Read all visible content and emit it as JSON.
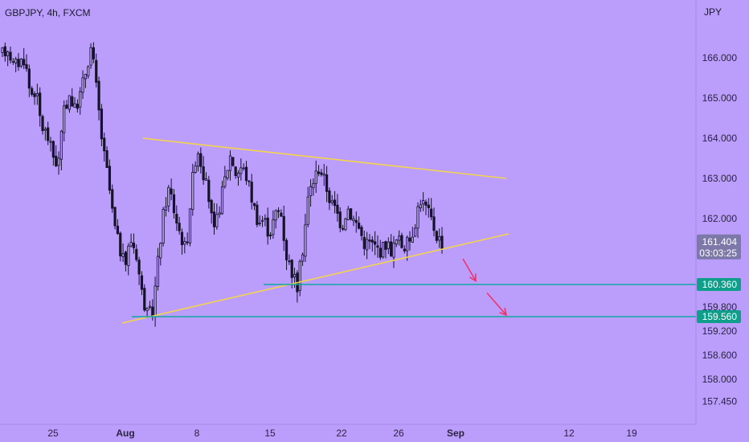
{
  "header": {
    "symbol_title": "GBPJPY, 4h, FXCM",
    "currency_unit": "JPY"
  },
  "colors": {
    "background": "#bb9efc",
    "candle": "#16122a",
    "trendline": "#f3d44a",
    "support_line": "#11a5a0",
    "tag": "#0f9e8a",
    "current_tag": "#7c79a8",
    "arrow": "#f0336a"
  },
  "chart_data": {
    "type": "candlestick",
    "title": "GBPJPY, 4h, FXCM",
    "ylabel": "JPY",
    "ylim": [
      157.2,
      167.3
    ],
    "y_ticks": [
      "166.000",
      "165.000",
      "164.000",
      "163.000",
      "162.000",
      "159.800",
      "159.200",
      "158.600",
      "158.000",
      "157.450"
    ],
    "x_ticks": [
      "25",
      "Aug",
      "8",
      "15",
      "22",
      "26",
      "Sep",
      "12",
      "19"
    ],
    "x_tick_bold": [
      "Aug",
      "Sep"
    ],
    "price_path": [
      166.1,
      166.25,
      165.8,
      165.9,
      166.0,
      165.1,
      165.2,
      164.3,
      164.1,
      163.6,
      163.3,
      164.6,
      165.1,
      164.7,
      165.1,
      165.7,
      166.3,
      165.1,
      163.8,
      163.0,
      161.9,
      161.3,
      160.8,
      161.5,
      161.2,
      160.2,
      159.6,
      159.7,
      161.0,
      162.2,
      162.8,
      162.1,
      161.6,
      161.2,
      162.8,
      163.8,
      163.2,
      162.6,
      161.6,
      162.3,
      163.0,
      163.6,
      163.1,
      163.3,
      163.0,
      162.4,
      161.9,
      162.0,
      161.6,
      162.1,
      162.2,
      161.1,
      160.7,
      160.3,
      161.3,
      162.6,
      163.0,
      163.3,
      162.9,
      162.4,
      162.2,
      161.8,
      162.3,
      162.0,
      161.8,
      161.4,
      161.4,
      161.3,
      161.2,
      161.4,
      161.2,
      161.5,
      161.3,
      161.4,
      161.8,
      162.5,
      162.3,
      162.0,
      161.6,
      161.4
    ],
    "candle_count": 165,
    "last_price": "161.404",
    "countdown": "03:03:25",
    "trendlines": [
      {
        "name": "upper trendline",
        "points": [
          [
            178,
            164.0
          ],
          [
            630,
            163.0
          ]
        ]
      },
      {
        "name": "lower trendline",
        "points": [
          [
            152,
            159.4
          ],
          [
            633,
            161.62
          ]
        ]
      }
    ],
    "horizontal_levels": [
      {
        "value": 160.36,
        "label": "160.360"
      },
      {
        "value": 159.56,
        "label": "159.560"
      }
    ],
    "annotations": [
      {
        "type": "arrow",
        "from": [
          576,
          161.0
        ],
        "to": [
          592,
          160.45
        ]
      },
      {
        "type": "arrow",
        "from": [
          606,
          160.15
        ],
        "to": [
          630,
          159.6
        ]
      }
    ],
    "grid": false
  }
}
